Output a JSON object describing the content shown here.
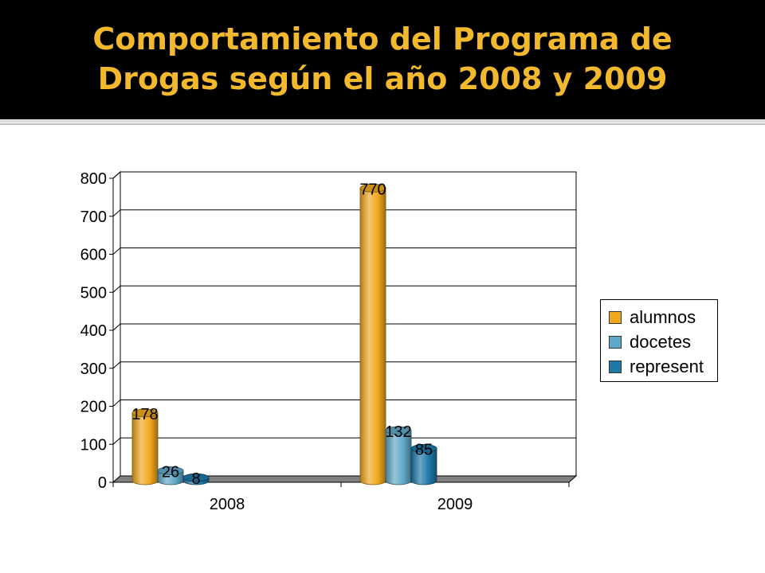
{
  "page": {
    "title_lines": [
      "Comportamiento del Programa de",
      "Drogas según el año 2008 y 2009"
    ],
    "title_color": "#f2b82e",
    "background_top": "#000000"
  },
  "chart_data": {
    "type": "bar",
    "style": "3d-cylinder",
    "categories": [
      "2008",
      "2009"
    ],
    "series": [
      {
        "name": "alumnos",
        "values": [
          178,
          770
        ],
        "color": "#f0a81c"
      },
      {
        "name": "docetes",
        "values": [
          26,
          132
        ],
        "color": "#5fa8c8"
      },
      {
        "name": "represent",
        "values": [
          8,
          85
        ],
        "color": "#1f78a8"
      }
    ],
    "data_labels": true,
    "yticks": [
      "0",
      "100",
      "200",
      "300",
      "400",
      "500",
      "600",
      "700",
      "800"
    ],
    "ylim": [
      0,
      800
    ],
    "grid": true,
    "legend_position": "right"
  }
}
